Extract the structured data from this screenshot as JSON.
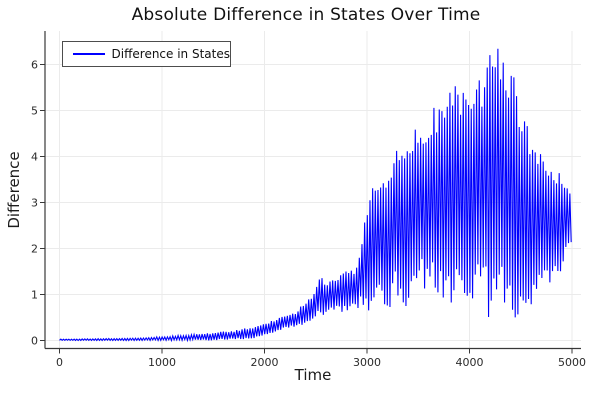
{
  "chart_data": {
    "type": "line",
    "title": "Absolute Difference in States Over Time",
    "xlabel": "Time",
    "ylabel": "Difference",
    "x_ticks": [
      0,
      1000,
      2000,
      3000,
      4000,
      5000
    ],
    "y_ticks": [
      0,
      1,
      2,
      3,
      4,
      5,
      6
    ],
    "xlim": [
      0,
      5000
    ],
    "ylim": [
      0,
      6.7
    ],
    "grid": true,
    "legend_position": "top-left",
    "series": [
      {
        "name": "Difference in States",
        "color": "#0000ff",
        "line_width": 1.1,
        "oscillation_period": 26,
        "envelope_t_lo_hi": [
          [
            0,
            0,
            0.03
          ],
          [
            400,
            0,
            0.04
          ],
          [
            700,
            0,
            0.05
          ],
          [
            900,
            0,
            0.07
          ],
          [
            1100,
            0,
            0.1
          ],
          [
            1300,
            0,
            0.13
          ],
          [
            1500,
            0,
            0.17
          ],
          [
            1700,
            0.01,
            0.22
          ],
          [
            1850,
            0.03,
            0.28
          ],
          [
            2000,
            0.1,
            0.36
          ],
          [
            2150,
            0.22,
            0.5
          ],
          [
            2300,
            0.3,
            0.62
          ],
          [
            2400,
            0.36,
            0.85
          ],
          [
            2480,
            0.42,
            1.05
          ],
          [
            2540,
            0.5,
            1.5
          ],
          [
            2600,
            0.55,
            1.25
          ],
          [
            2700,
            0.6,
            1.4
          ],
          [
            2800,
            0.62,
            1.52
          ],
          [
            2900,
            0.68,
            1.6
          ],
          [
            2960,
            0.75,
            2.3
          ],
          [
            3010,
            0.45,
            3.2
          ],
          [
            3100,
            0.85,
            3.45
          ],
          [
            3200,
            0.6,
            3.85
          ],
          [
            3300,
            0.95,
            4.2
          ],
          [
            3360,
            0.5,
            4.0
          ],
          [
            3450,
            0.95,
            4.55
          ],
          [
            3550,
            1.1,
            4.85
          ],
          [
            3650,
            1.15,
            5.1
          ],
          [
            3750,
            0.7,
            5.4
          ],
          [
            3840,
            0.65,
            5.65
          ],
          [
            3950,
            0.8,
            5.55
          ],
          [
            4020,
            0.9,
            5.45
          ],
          [
            4100,
            0.6,
            5.8
          ],
          [
            4180,
            0.5,
            6.1
          ],
          [
            4250,
            0.42,
            6.55
          ],
          [
            4330,
            0.45,
            6.25
          ],
          [
            4400,
            0.4,
            6.0
          ],
          [
            4460,
            0.45,
            5.55
          ],
          [
            4520,
            0.55,
            5.15
          ],
          [
            4600,
            0.65,
            4.6
          ],
          [
            4700,
            0.9,
            4.15
          ],
          [
            4800,
            0.9,
            3.95
          ],
          [
            4880,
            1.3,
            3.7
          ],
          [
            4950,
            1.9,
            3.4
          ],
          [
            5000,
            2.15,
            3.25
          ]
        ]
      }
    ]
  },
  "legend": {
    "entries": [
      {
        "label": "Difference in States",
        "color": "#0000ff"
      }
    ]
  },
  "style_colors": {
    "series_blue": "#0000ff",
    "grid": "#ebebeb",
    "axis": "#383838",
    "text": "#2b2b2b"
  }
}
